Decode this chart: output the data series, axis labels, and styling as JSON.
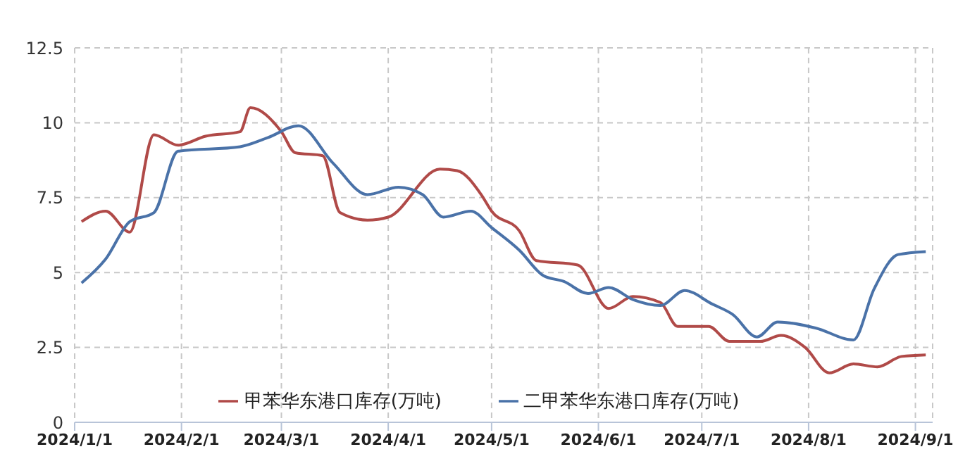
{
  "chart_data": {
    "type": "line",
    "xlim": [
      "2024-01-01",
      "2024-09-06"
    ],
    "xticks": [
      {
        "value": "2024-01-01",
        "label": "2024/1/1"
      },
      {
        "value": "2024-02-01",
        "label": "2024/2/1"
      },
      {
        "value": "2024-03-01",
        "label": "2024/3/1"
      },
      {
        "value": "2024-04-01",
        "label": "2024/4/1"
      },
      {
        "value": "2024-05-01",
        "label": "2024/5/1"
      },
      {
        "value": "2024-06-01",
        "label": "2024/6/1"
      },
      {
        "value": "2024-07-01",
        "label": "2024/7/1"
      },
      {
        "value": "2024-08-01",
        "label": "2024/8/1"
      },
      {
        "value": "2024-09-01",
        "label": "2024/9/1"
      }
    ],
    "ylim": [
      0,
      12.5
    ],
    "yticks": [
      0,
      2.5,
      5,
      7.5,
      10,
      12.5
    ],
    "grid": true,
    "legend": "bottom",
    "marker": "none",
    "line_style": "solid",
    "series": [
      {
        "name": "甲苯华东港口库存(万吨)",
        "color": "#b04a48",
        "x": [
          "2024-01-03",
          "2024-01-10",
          "2024-01-17",
          "2024-01-24",
          "2024-01-31",
          "2024-02-08",
          "2024-02-18",
          "2024-02-21",
          "2024-03-01",
          "2024-03-05",
          "2024-03-13",
          "2024-03-18",
          "2024-03-26",
          "2024-04-01",
          "2024-04-16",
          "2024-04-21",
          "2024-04-28",
          "2024-05-01",
          "2024-05-09",
          "2024-05-14",
          "2024-05-26",
          "2024-06-04",
          "2024-06-11",
          "2024-06-19",
          "2024-06-24",
          "2024-07-03",
          "2024-07-09",
          "2024-07-18",
          "2024-07-24",
          "2024-07-31",
          "2024-08-07",
          "2024-08-14",
          "2024-08-21",
          "2024-08-28",
          "2024-09-04"
        ],
        "values": [
          6.7,
          7.05,
          6.35,
          9.6,
          9.25,
          9.55,
          9.7,
          10.5,
          9.7,
          9.0,
          8.9,
          7.0,
          6.75,
          6.85,
          8.45,
          8.4,
          7.6,
          7.05,
          6.4,
          5.4,
          5.25,
          3.8,
          4.2,
          4.0,
          3.2,
          3.2,
          2.7,
          2.7,
          2.9,
          2.5,
          1.65,
          1.95,
          1.85,
          2.2,
          2.25
        ]
      },
      {
        "name": "二甲苯华东港口库存(万吨)",
        "color": "#4a72a8",
        "x": [
          "2024-01-03",
          "2024-01-10",
          "2024-01-17",
          "2024-01-24",
          "2024-01-31",
          "2024-02-18",
          "2024-02-26",
          "2024-03-06",
          "2024-03-16",
          "2024-03-26",
          "2024-04-04",
          "2024-04-11",
          "2024-04-17",
          "2024-04-25",
          "2024-05-01",
          "2024-05-09",
          "2024-05-16",
          "2024-05-22",
          "2024-05-29",
          "2024-06-04",
          "2024-06-11",
          "2024-06-19",
          "2024-06-26",
          "2024-07-04",
          "2024-07-10",
          "2024-07-17",
          "2024-07-23",
          "2024-08-03",
          "2024-08-14",
          "2024-08-20",
          "2024-08-27",
          "2024-09-04"
        ],
        "values": [
          4.65,
          5.45,
          6.7,
          7.0,
          9.05,
          9.2,
          9.5,
          9.9,
          8.65,
          7.6,
          7.85,
          7.6,
          6.85,
          7.05,
          6.5,
          5.75,
          4.9,
          4.7,
          4.3,
          4.5,
          4.1,
          3.9,
          4.4,
          3.95,
          3.6,
          2.85,
          3.35,
          3.15,
          2.75,
          4.45,
          5.6,
          5.7
        ]
      }
    ]
  }
}
